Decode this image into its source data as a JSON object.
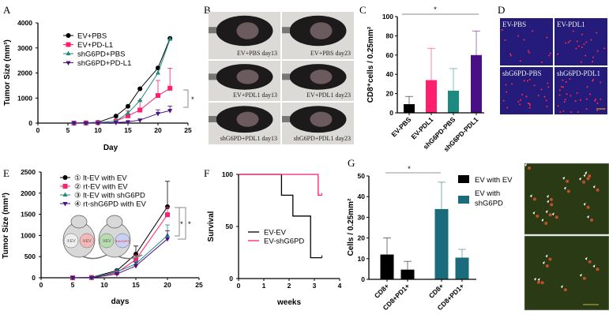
{
  "panel_labels": [
    "A",
    "B",
    "C",
    "D",
    "E",
    "F",
    "G",
    "H"
  ],
  "colors": {
    "black": "#000000",
    "pink": "#ff1f6e",
    "teal": "#1d8a80",
    "purple": "#4a0f85",
    "tealG": "#1a6c7c",
    "grey": "#999999"
  },
  "photos_B": [
    "EV+PBS day13",
    "EV+PBS day23",
    "EV+PDL1 day13",
    "EV+PDL1 day23",
    "shG6PD+PDL1 day13",
    "shG6PD+PDL1 day23"
  ],
  "images_D": [
    "EV-PBS",
    "EV-PDL1",
    "shG6PD-PBS",
    "shG6PD-PDL1"
  ],
  "mice_E": [
    "①EV",
    "②EV",
    "③EV",
    "④shG6PD"
  ],
  "chart_data": [
    {
      "id": "A",
      "type": "line",
      "xlabel": "Day",
      "ylabel": "Tumor Size (mm³)",
      "xlim": [
        0,
        25
      ],
      "ylim": [
        0,
        4000
      ],
      "xticks": [
        "0",
        "5",
        "10",
        "15",
        "20",
        "25"
      ],
      "yticks": [
        "0",
        "1000",
        "2000",
        "3000",
        "4000"
      ],
      "x": [
        6,
        8,
        10,
        13,
        15,
        17,
        20,
        22
      ],
      "legend_position": "top-left",
      "significance": "*",
      "series": [
        {
          "name": "EV+PBS",
          "color": "#000000",
          "marker": "circle",
          "values": [
            0,
            10,
            30,
            280,
            670,
            1370,
            2200,
            3380
          ],
          "err": [
            0,
            0,
            0,
            0,
            0,
            0,
            0,
            0
          ]
        },
        {
          "name": "EV+PD-L1",
          "color": "#ff1f6e",
          "marker": "square",
          "values": [
            0,
            5,
            20,
            80,
            290,
            520,
            1100,
            1390
          ],
          "err": [
            0,
            0,
            0,
            0,
            200,
            380,
            600,
            800
          ]
        },
        {
          "name": "shG6PD+PBS",
          "color": "#1d8a80",
          "marker": "triangle",
          "values": [
            0,
            5,
            20,
            80,
            400,
            900,
            2000,
            3350
          ],
          "err": [
            0,
            0,
            0,
            0,
            0,
            0,
            0,
            0
          ]
        },
        {
          "name": "shG6PD+PD-L1",
          "color": "#4a0f85",
          "marker": "triangle-down",
          "values": [
            0,
            0,
            0,
            20,
            50,
            120,
            380,
            500
          ],
          "err": [
            0,
            0,
            0,
            0,
            0,
            0,
            150,
            180
          ]
        }
      ]
    },
    {
      "id": "C",
      "type": "bar",
      "xlabel": "",
      "ylabel": "CD8⁺cells / 0.25mm²",
      "ylim": [
        0,
        100
      ],
      "yticks": [
        "0",
        "20",
        "40",
        "60",
        "80",
        "100"
      ],
      "categories": [
        "EV-PBS",
        "EV-PDL1",
        "shG6PD-PBS",
        "shG6PD-PDL1"
      ],
      "values": [
        9,
        34,
        23,
        60
      ],
      "err": [
        8,
        33,
        23,
        25
      ],
      "colors": [
        "#000000",
        "#ff1f6e",
        "#1d8a80",
        "#4a0f85"
      ],
      "significance": "*"
    },
    {
      "id": "E",
      "type": "line",
      "xlabel": "days",
      "ylabel": "Tumor Size (mm³)",
      "xlim": [
        0,
        25
      ],
      "ylim": [
        0,
        2500
      ],
      "xticks": [
        "0",
        "5",
        "10",
        "15",
        "20",
        "25"
      ],
      "yticks": [
        "0",
        "500",
        "1000",
        "1500",
        "2000",
        "2500"
      ],
      "x": [
        5,
        8,
        12,
        15,
        20
      ],
      "legend_position": "top-left",
      "significance": [
        "*",
        "*"
      ],
      "series": [
        {
          "name": "① lt-EV with EV",
          "color": "#000000",
          "marker": "circle",
          "values": [
            0,
            10,
            170,
            560,
            1680
          ],
          "err": [
            0,
            0,
            30,
            190,
            600
          ]
        },
        {
          "name": "② rt-EV with EV",
          "color": "#ff1f6e",
          "marker": "square",
          "values": [
            0,
            5,
            120,
            430,
            1490
          ],
          "err": [
            0,
            0,
            30,
            100,
            180
          ]
        },
        {
          "name": "③ lt-EV with shG6PD",
          "color": "#1d8a80",
          "marker": "triangle",
          "values": [
            0,
            5,
            140,
            330,
            1000
          ],
          "err": [
            0,
            0,
            60,
            60,
            250
          ]
        },
        {
          "name": "④ rt-shG6PD with EV",
          "color": "#4a0f85",
          "marker": "triangle-down",
          "values": [
            0,
            0,
            90,
            280,
            920
          ],
          "err": [
            0,
            0,
            30,
            80,
            190
          ]
        }
      ]
    },
    {
      "id": "F",
      "type": "line",
      "xlabel": "weeks",
      "ylabel": "Survival",
      "xlim": [
        0,
        4
      ],
      "ylim": [
        0,
        100
      ],
      "xticks": [
        "0",
        "1",
        "2",
        "3",
        "4"
      ],
      "yticks": [
        "0",
        "50",
        "100"
      ],
      "legend_position": "center-left",
      "series": [
        {
          "name": "EV-EV",
          "color": "#000000",
          "steps": [
            [
              0,
              100
            ],
            [
              1.7,
              80
            ],
            [
              2.15,
              60
            ],
            [
              2.85,
              20
            ],
            [
              3.3,
              20
            ]
          ]
        },
        {
          "name": "EV-shG6PD",
          "color": "#ff1f6e",
          "steps": [
            [
              0,
              100
            ],
            [
              3.15,
              80
            ],
            [
              3.3,
              80
            ]
          ]
        }
      ]
    },
    {
      "id": "G",
      "type": "bar",
      "xlabel": "",
      "ylabel": "Cells / 0.25mm²",
      "ylim": [
        0,
        50
      ],
      "yticks": [
        "0",
        "10",
        "20",
        "30",
        "40",
        "50"
      ],
      "categories": [
        "CD8+",
        "CD8+PD1+",
        "CD8+",
        "CD8+PD1+"
      ],
      "values": [
        12,
        4.7,
        34,
        10.5
      ],
      "err": [
        8,
        4,
        13,
        4
      ],
      "colors": [
        "#000000",
        "#000000",
        "#1a6c7c",
        "#1a6c7c"
      ],
      "significance": "*",
      "legend": [
        {
          "name": "EV with EV",
          "color": "#000000"
        },
        {
          "name": "EV with shG6PD",
          "lines": [
            "EV with",
            "shG6PD"
          ],
          "color": "#1a6c7c"
        }
      ]
    }
  ]
}
